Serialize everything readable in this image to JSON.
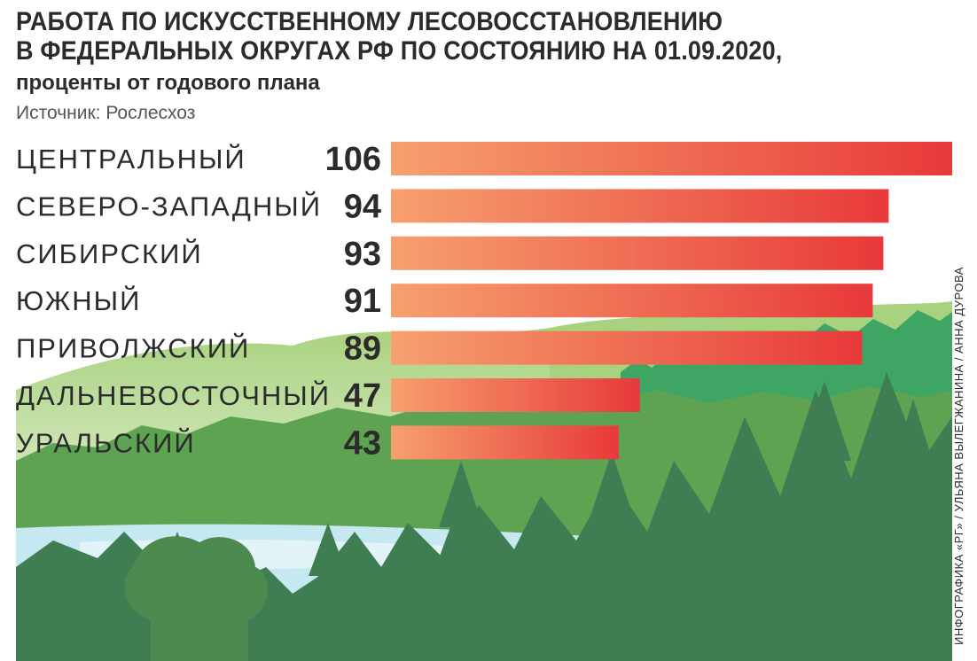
{
  "title_lines": [
    "РАБОТА ПО ИСКУССТВЕННОМУ ЛЕСОВОССТАНОВЛЕНИЮ",
    "В ФЕДЕРАЛЬНЫХ ОКРУГАХ РФ ПО СОСТОЯНИЮ НА 01.09.2020,"
  ],
  "subtitle": "проценты от годового плана",
  "source": "Источник: Рослесхоз",
  "credit": "ИНФОГРАФИКА «РГ» / УЛЬЯНА ВЫЛЕГЖАНИНА / АННА ДУРОВА",
  "colors": {
    "bar_start": "#f6a06e",
    "bar_end": "#e8393a",
    "text": "#2b2b2b",
    "forest_light": "#8dc56a",
    "forest_mid": "#4f9a4c",
    "forest_dark": "#3e7c50",
    "water": "#bfe4f0"
  },
  "chart_data": {
    "type": "bar",
    "orientation": "horizontal",
    "categories": [
      "ЦЕНТРАЛЬНЫЙ",
      "СЕВЕРО-ЗАПАДНЫЙ",
      "СИБИРСКИЙ",
      "ЮЖНЫЙ",
      "ПРИВОЛЖСКИЙ",
      "ДАЛЬНЕВОСТОЧНЫЙ",
      "УРАЛЬСКИЙ"
    ],
    "values": [
      106,
      94,
      93,
      91,
      89,
      47,
      43
    ],
    "value_labels": [
      "106",
      "94",
      "93",
      "91",
      "89",
      "47",
      "43"
    ],
    "xlim": [
      0,
      106
    ],
    "grid": false,
    "legend": "none"
  }
}
